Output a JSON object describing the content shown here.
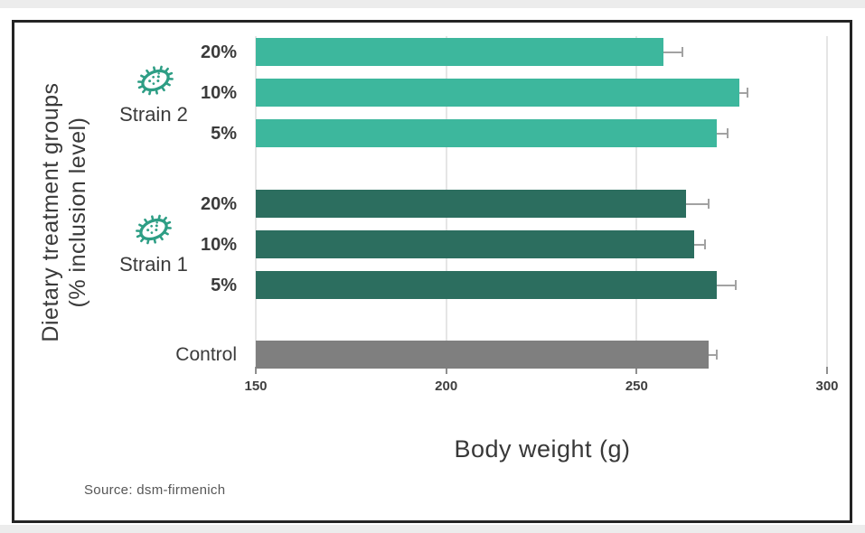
{
  "chart_data": {
    "type": "bar",
    "orientation": "horizontal",
    "title": "",
    "xlabel": "Body weight (g)",
    "ylabel": "Dietary treatment groups (% inclusion level)",
    "ylabel_lines": [
      "Dietary treatment groups",
      "(% inclusion level)"
    ],
    "xlim": [
      150,
      300
    ],
    "xticks": [
      150,
      200,
      250,
      300
    ],
    "grid": true,
    "legend_position": "none",
    "groups": [
      {
        "name": "Strain 2",
        "color": "#3db79d",
        "icon": "bacteria-icon"
      },
      {
        "name": "Strain 1",
        "color": "#2c6e5f",
        "icon": "bacteria-icon"
      },
      {
        "name": "Control",
        "color": "#7f7f7f"
      }
    ],
    "rows": [
      {
        "group": "Strain 2",
        "label": "20%",
        "value": 257,
        "error": 5
      },
      {
        "group": "Strain 2",
        "label": "10%",
        "value": 277,
        "error": 2
      },
      {
        "group": "Strain 2",
        "label": "5%",
        "value": 271,
        "error": 3
      },
      {
        "group": "Strain 1",
        "label": "20%",
        "value": 263,
        "error": 6
      },
      {
        "group": "Strain 1",
        "label": "10%",
        "value": 265,
        "error": 3
      },
      {
        "group": "Strain 1",
        "label": "5%",
        "value": 271,
        "error": 5
      },
      {
        "group": "Control",
        "label": "Control",
        "value": 269,
        "error": 2
      }
    ],
    "source": "Source: dsm-firmenich"
  },
  "colors": {
    "strain2": "#3db79d",
    "strain1": "#2c6e5f",
    "control": "#7f7f7f",
    "gridline": "#e5e5e5",
    "error_bar": "#a2a2a2",
    "frame_border": "#242424",
    "icon": "#2e9e85",
    "text": "#3a3a3a",
    "page_strip": "#ececec"
  }
}
